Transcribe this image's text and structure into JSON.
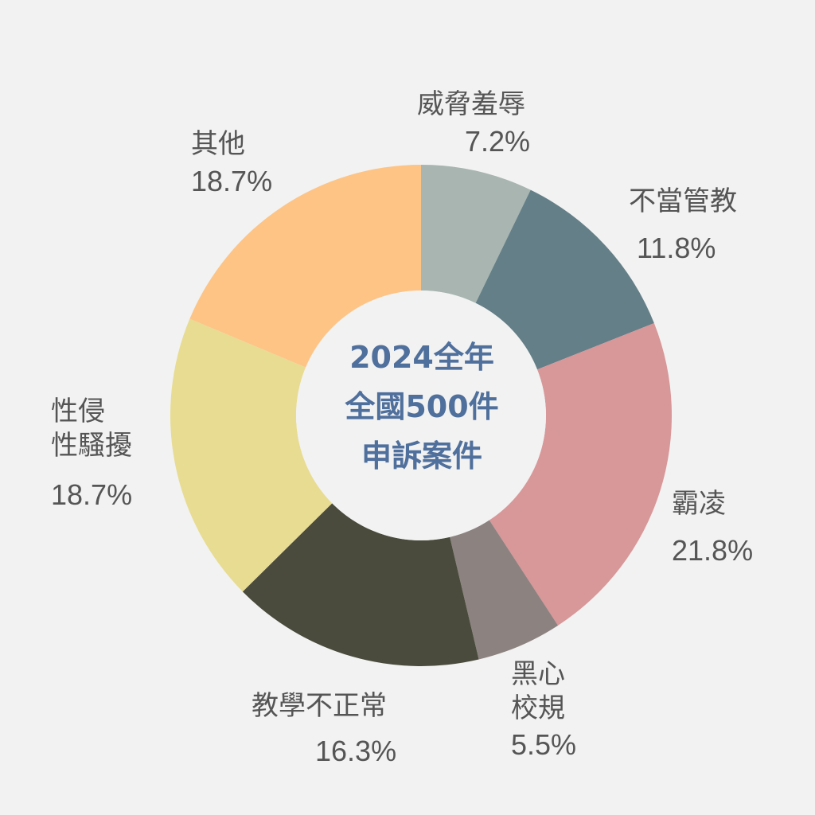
{
  "chart_data": {
    "type": "pie",
    "center_title": [
      "2024全年",
      "全國500件",
      "申訴案件"
    ],
    "unit": "%",
    "slices": [
      {
        "name": "威脅羞辱",
        "name_lines": [
          "威脅羞辱"
        ],
        "value": 7.2,
        "label": "7.2%",
        "color": "#a8b5b0"
      },
      {
        "name": "不當管教",
        "name_lines": [
          "不當管教"
        ],
        "value": 11.8,
        "label": "11.8%",
        "color": "#647f87"
      },
      {
        "name": "霸凌",
        "name_lines": [
          "霸凌"
        ],
        "value": 21.8,
        "label": "21.8%",
        "color": "#d89798"
      },
      {
        "name": "黑心校規",
        "name_lines": [
          "黑心",
          "校規"
        ],
        "value": 5.5,
        "label": "5.5%",
        "color": "#8c8280"
      },
      {
        "name": "教學不正常",
        "name_lines": [
          "教學不正常"
        ],
        "value": 16.3,
        "label": "16.3%",
        "color": "#4a4b3c"
      },
      {
        "name": "性侵性騷擾",
        "name_lines": [
          "性侵",
          "性騷擾"
        ],
        "value": 18.7,
        "label": "18.7%",
        "color": "#e8dc92"
      },
      {
        "name": "其他",
        "name_lines": [
          "其他"
        ],
        "value": 18.7,
        "label": "18.7%",
        "color": "#fdc486"
      }
    ]
  }
}
